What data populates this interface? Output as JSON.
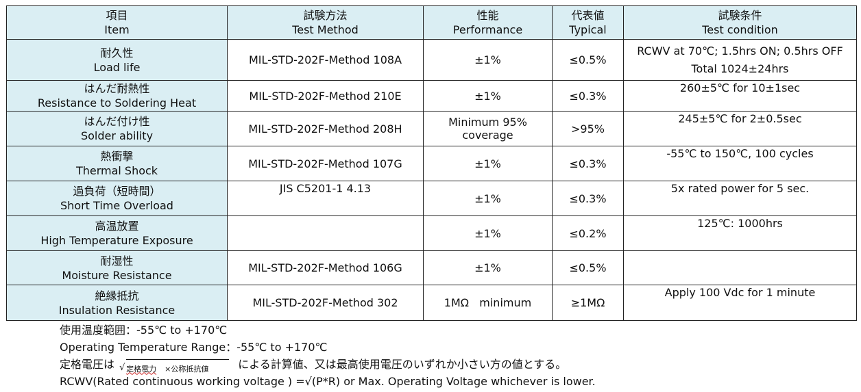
{
  "header": {
    "item_jp": "項目",
    "item_en": "Item",
    "method_jp": "試験方法",
    "method_en": "Test Method",
    "perf_jp": "性能",
    "perf_en": "Performance",
    "typ_jp": "代表値",
    "typ_en": "Typical",
    "cond_jp": "試験条件",
    "cond_en": "Test condition"
  },
  "rows": [
    {
      "item_jp": "耐久性",
      "item_en": "Load life",
      "method": "MIL-STD-202F-Method 108A",
      "perf": "±1%",
      "typ": "≤0.5%",
      "cond1": "RCWV at 70℃; 1.5hrs ON; 0.5hrs OFF",
      "cond2": "Total 1024±24hrs"
    },
    {
      "item_jp": "はんだ耐熱性",
      "item_en": "Resistance to Soldering Heat",
      "method": "MIL-STD-202F-Method 210E",
      "perf": "±1%",
      "typ": "≤0.3%",
      "cond1": "260±5℃  for 10±1sec"
    },
    {
      "item_jp": "はんだ付け性",
      "item_en": "Solder ability",
      "method": "MIL-STD-202F-Method 208H",
      "perf1": "Minimum 95%",
      "perf2": "coverage",
      "typ": ">95%",
      "cond1": "245±5℃  for 2±0.5sec"
    },
    {
      "item_jp": "熱衝撃",
      "item_en": "Thermal Shock",
      "method": "MIL-STD-202F-Method 107G",
      "perf": "±1%",
      "typ": "≤0.3%",
      "cond1": "-55℃  to 150℃, 100 cycles"
    },
    {
      "item_jp": "過負荷（短時間）",
      "item_en": "Short Time Overload",
      "method": "JIS C5201-1 4.13",
      "perf": "±1%",
      "typ": "≤0.3%",
      "cond1": "5x rated power for 5 sec."
    },
    {
      "item_jp": "高温放置",
      "item_en": "High Temperature Exposure",
      "method": "",
      "perf": "±1%",
      "typ": "≤0.2%",
      "cond1": "125℃: 1000hrs"
    },
    {
      "item_jp": "耐湿性",
      "item_en": "Moisture Resistance",
      "method": "MIL-STD-202F-Method 106G",
      "perf": "±1%",
      "typ": "≤0.5%",
      "cond1": ""
    },
    {
      "item_jp": "絶縁抵抗",
      "item_en": "Insulation Resistance",
      "method": "MIL-STD-202F-Method 302",
      "perf": "1MΩ   minimum",
      "typ": "≥1MΩ",
      "cond1": "Apply 100 Vdc for 1 minute"
    }
  ],
  "notes": {
    "temp_jp": "使用温度範囲：-55℃  to  +170℃",
    "temp_en": "Operating Temperature Range：-55℃  to  +170℃",
    "rated_prefix": "定格電圧は",
    "formula_sqrt": "√",
    "formula_a": "定格電力",
    "formula_b": "×公称抵抗値",
    "rated_suffix": "による計算値、又は最高使用電圧のいずれか小さい方の値とする。",
    "rcwv": "RCWV(Rated continuous working voltage ) =√(P*R) or Max. Operating Voltage whichever is lower."
  }
}
